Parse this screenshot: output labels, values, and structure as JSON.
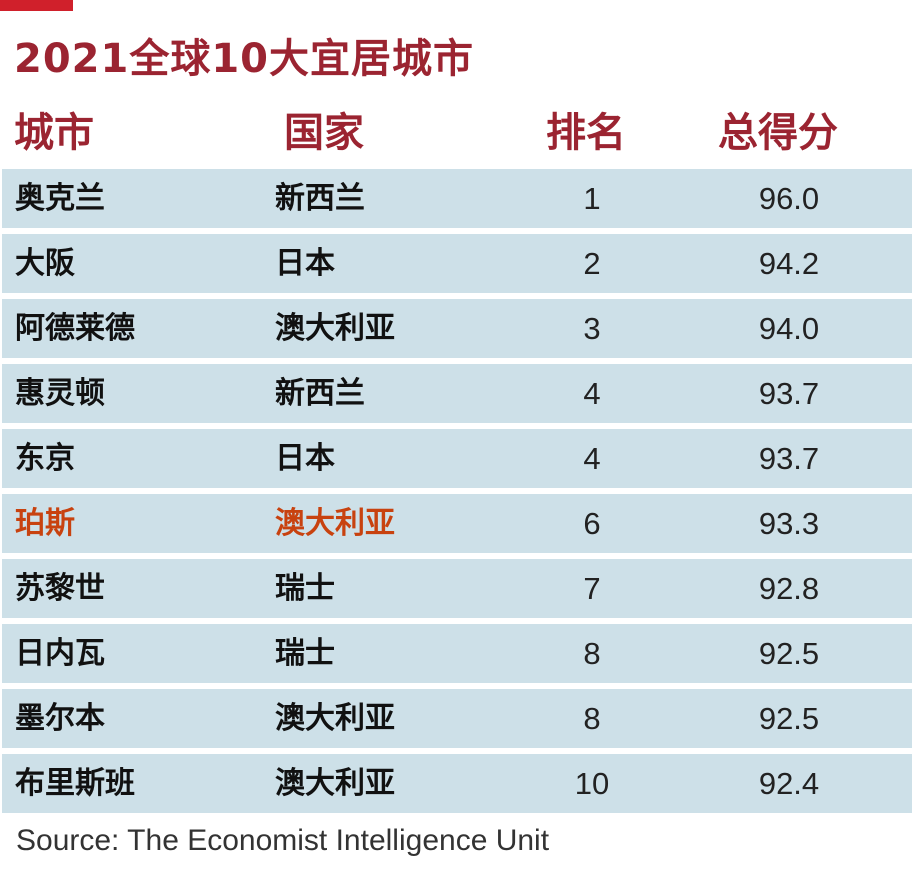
{
  "title": "2021全球10大宜居城市",
  "colors": {
    "accent": "#d0202b",
    "title": "#9b2431",
    "row_bg": "#cde0e8",
    "highlight": "#c8420f"
  },
  "chart_data": {
    "type": "table",
    "title": "2021全球10大宜居城市",
    "columns": [
      "城市",
      "国家",
      "排名",
      "总得分"
    ],
    "rows": [
      {
        "city": "奥克兰",
        "country": "新西兰",
        "rank": "1",
        "score": "96.0"
      },
      {
        "city": "大阪",
        "country": "日本",
        "rank": "2",
        "score": "94.2"
      },
      {
        "city": "阿德莱德",
        "country": "澳大利亚",
        "rank": "3",
        "score": "94.0"
      },
      {
        "city": "惠灵顿",
        "country": "新西兰",
        "rank": "4",
        "score": "93.7"
      },
      {
        "city": "东京",
        "country": "日本",
        "rank": "4",
        "score": "93.7"
      },
      {
        "city": "珀斯",
        "country": "澳大利亚",
        "rank": "6",
        "score": "93.3",
        "highlight": true
      },
      {
        "city": "苏黎世",
        "country": "瑞士",
        "rank": "7",
        "score": "92.8"
      },
      {
        "city": "日内瓦",
        "country": "瑞士",
        "rank": "8",
        "score": "92.5"
      },
      {
        "city": "墨尔本",
        "country": "澳大利亚",
        "rank": "8",
        "score": "92.5"
      },
      {
        "city": "布里斯班",
        "country": "澳大利亚",
        "rank": "10",
        "score": "92.4"
      }
    ],
    "highlighted_row": 5
  },
  "source": "Source: The Economist Intelligence Unit"
}
